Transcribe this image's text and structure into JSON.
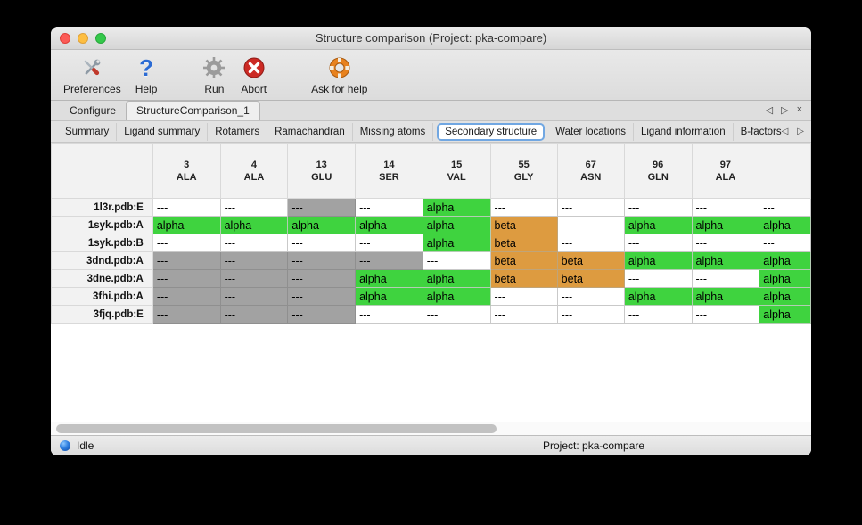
{
  "window": {
    "title": "Structure comparison (Project: pka-compare)"
  },
  "toolbar": {
    "items": [
      {
        "label": "Preferences"
      },
      {
        "label": "Help"
      },
      {
        "label": "Run"
      },
      {
        "label": "Abort"
      },
      {
        "label": "Ask for help"
      }
    ]
  },
  "tabs": {
    "items": [
      {
        "label": "Configure",
        "active": false
      },
      {
        "label": "StructureComparison_1",
        "active": true
      }
    ]
  },
  "subtabs": {
    "items": [
      {
        "label": "Summary",
        "selected": false
      },
      {
        "label": "Ligand summary",
        "selected": false
      },
      {
        "label": "Rotamers",
        "selected": false
      },
      {
        "label": "Ramachandran",
        "selected": false
      },
      {
        "label": "Missing atoms",
        "selected": false
      },
      {
        "label": "Secondary structure",
        "selected": true
      },
      {
        "label": "Water locations",
        "selected": false
      },
      {
        "label": "Ligand information",
        "selected": false
      },
      {
        "label": "B-factors",
        "selected": false
      }
    ]
  },
  "icons": {
    "prev": "◁",
    "next": "▷",
    "close": "×"
  },
  "table": {
    "columns": [
      {
        "num": "3",
        "res": "ALA"
      },
      {
        "num": "4",
        "res": "ALA"
      },
      {
        "num": "13",
        "res": "GLU"
      },
      {
        "num": "14",
        "res": "SER"
      },
      {
        "num": "15",
        "res": "VAL"
      },
      {
        "num": "55",
        "res": "GLY"
      },
      {
        "num": "67",
        "res": "ASN"
      },
      {
        "num": "96",
        "res": "GLN"
      },
      {
        "num": "97",
        "res": "ALA"
      },
      {
        "num": "",
        "res": ""
      }
    ],
    "rows": [
      {
        "label": "1l3r.pdb:E",
        "cells": [
          {
            "text": "---",
            "state": "none"
          },
          {
            "text": "---",
            "state": "none"
          },
          {
            "text": "---",
            "state": "missing"
          },
          {
            "text": "---",
            "state": "none"
          },
          {
            "text": "alpha",
            "state": "alpha"
          },
          {
            "text": "---",
            "state": "none"
          },
          {
            "text": "---",
            "state": "none"
          },
          {
            "text": "---",
            "state": "none"
          },
          {
            "text": "---",
            "state": "none"
          },
          {
            "text": "---",
            "state": "none"
          }
        ]
      },
      {
        "label": "1syk.pdb:A",
        "cells": [
          {
            "text": "alpha",
            "state": "alpha"
          },
          {
            "text": "alpha",
            "state": "alpha"
          },
          {
            "text": "alpha",
            "state": "alpha"
          },
          {
            "text": "alpha",
            "state": "alpha"
          },
          {
            "text": "alpha",
            "state": "alpha"
          },
          {
            "text": "beta",
            "state": "beta"
          },
          {
            "text": "---",
            "state": "none"
          },
          {
            "text": "alpha",
            "state": "alpha"
          },
          {
            "text": "alpha",
            "state": "alpha"
          },
          {
            "text": "alpha",
            "state": "alpha"
          }
        ]
      },
      {
        "label": "1syk.pdb:B",
        "cells": [
          {
            "text": "---",
            "state": "none"
          },
          {
            "text": "---",
            "state": "none"
          },
          {
            "text": "---",
            "state": "none"
          },
          {
            "text": "---",
            "state": "none"
          },
          {
            "text": "alpha",
            "state": "alpha"
          },
          {
            "text": "beta",
            "state": "beta"
          },
          {
            "text": "---",
            "state": "none"
          },
          {
            "text": "---",
            "state": "none"
          },
          {
            "text": "---",
            "state": "none"
          },
          {
            "text": "---",
            "state": "none"
          }
        ]
      },
      {
        "label": "3dnd.pdb:A",
        "cells": [
          {
            "text": "---",
            "state": "missing"
          },
          {
            "text": "---",
            "state": "missing"
          },
          {
            "text": "---",
            "state": "missing"
          },
          {
            "text": "---",
            "state": "missing"
          },
          {
            "text": "---",
            "state": "none"
          },
          {
            "text": "beta",
            "state": "beta"
          },
          {
            "text": "beta",
            "state": "beta"
          },
          {
            "text": "alpha",
            "state": "alpha"
          },
          {
            "text": "alpha",
            "state": "alpha"
          },
          {
            "text": "alpha",
            "state": "alpha"
          }
        ]
      },
      {
        "label": "3dne.pdb:A",
        "cells": [
          {
            "text": "---",
            "state": "missing"
          },
          {
            "text": "---",
            "state": "missing"
          },
          {
            "text": "---",
            "state": "missing"
          },
          {
            "text": "alpha",
            "state": "alpha"
          },
          {
            "text": "alpha",
            "state": "alpha"
          },
          {
            "text": "beta",
            "state": "beta"
          },
          {
            "text": "beta",
            "state": "beta"
          },
          {
            "text": "---",
            "state": "none"
          },
          {
            "text": "---",
            "state": "none"
          },
          {
            "text": "alpha",
            "state": "alpha"
          }
        ]
      },
      {
        "label": "3fhi.pdb:A",
        "cells": [
          {
            "text": "---",
            "state": "missing"
          },
          {
            "text": "---",
            "state": "missing"
          },
          {
            "text": "---",
            "state": "missing"
          },
          {
            "text": "alpha",
            "state": "alpha"
          },
          {
            "text": "alpha",
            "state": "alpha"
          },
          {
            "text": "---",
            "state": "none"
          },
          {
            "text": "---",
            "state": "none"
          },
          {
            "text": "alpha",
            "state": "alpha"
          },
          {
            "text": "alpha",
            "state": "alpha"
          },
          {
            "text": "alpha",
            "state": "alpha"
          }
        ]
      },
      {
        "label": "3fjq.pdb:E",
        "cells": [
          {
            "text": "---",
            "state": "missing"
          },
          {
            "text": "---",
            "state": "missing"
          },
          {
            "text": "---",
            "state": "missing"
          },
          {
            "text": "---",
            "state": "none"
          },
          {
            "text": "---",
            "state": "none"
          },
          {
            "text": "---",
            "state": "none"
          },
          {
            "text": "---",
            "state": "none"
          },
          {
            "text": "---",
            "state": "none"
          },
          {
            "text": "---",
            "state": "none"
          },
          {
            "text": "alpha",
            "state": "alpha"
          }
        ]
      }
    ]
  },
  "statusbar": {
    "status": "Idle",
    "project": "Project: pka-compare"
  },
  "colors": {
    "alpha": "#3fd33f",
    "beta": "#dd9b40",
    "missing": "#a2a2a2",
    "none": "#ffffff"
  }
}
